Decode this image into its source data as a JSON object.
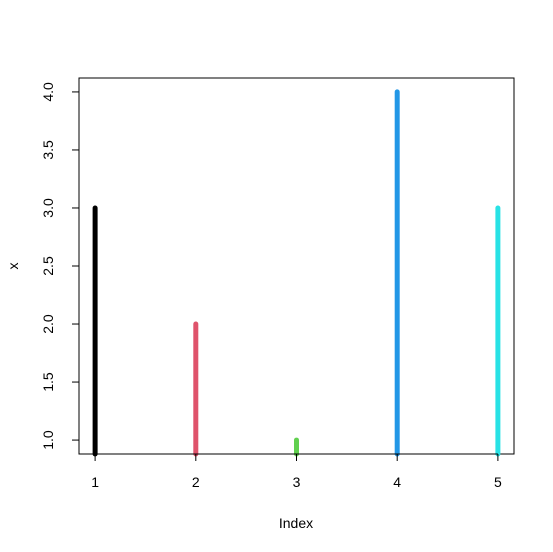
{
  "chart_data": {
    "type": "bar",
    "plot_style": "histogram-spikes",
    "title": "",
    "xlabel": "Index",
    "ylabel": "x",
    "x": [
      1,
      2,
      3,
      4,
      5
    ],
    "x_tick_labels": [
      "1",
      "2",
      "3",
      "4",
      "5"
    ],
    "values": [
      3,
      2,
      1,
      4,
      3
    ],
    "colors": [
      "#000000",
      "#DF536B",
      "#61D04F",
      "#2297E6",
      "#28E2E5"
    ],
    "y_tick_values": [
      1.0,
      1.5,
      2.0,
      2.5,
      3.0,
      3.5,
      4.0
    ],
    "y_tick_labels": [
      "1.0",
      "1.5",
      "2.0",
      "2.5",
      "3.0",
      "3.5",
      "4.0"
    ],
    "xlim": [
      0.84,
      5.16
    ],
    "ylim": [
      0.88,
      4.12
    ],
    "grid": false,
    "legend": "none"
  }
}
